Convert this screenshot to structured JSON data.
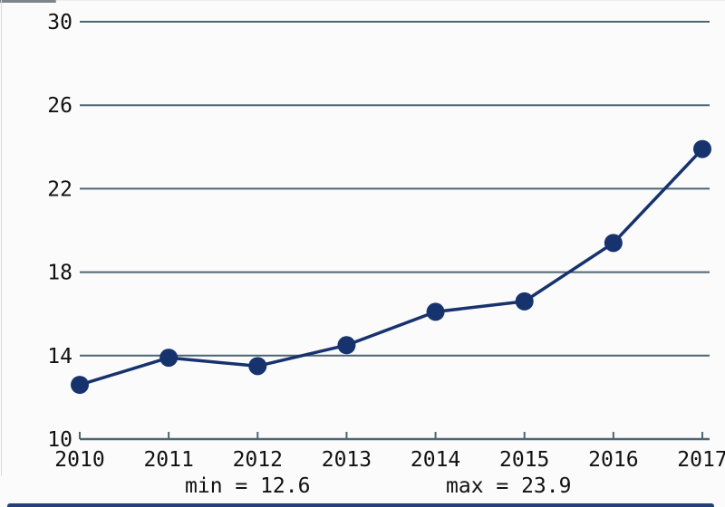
{
  "chart_data": {
    "type": "line",
    "categories": [
      "2010",
      "2011",
      "2012",
      "2013",
      "2014",
      "2015",
      "2016",
      "2017"
    ],
    "values": [
      12.6,
      13.9,
      13.5,
      14.5,
      16.1,
      16.6,
      19.4,
      23.9
    ],
    "title": "",
    "xlabel": "",
    "ylabel": "",
    "ylim": [
      10,
      30
    ],
    "yticks": [
      10,
      14,
      18,
      22,
      26,
      30
    ],
    "grid": true,
    "legend": false,
    "marker": "circle",
    "line_color": "#17336e",
    "grid_color": "#4d6572",
    "text_color": "#111111"
  },
  "annotations": {
    "min_label": "min = 12.6",
    "max_label": "max = 23.9"
  }
}
